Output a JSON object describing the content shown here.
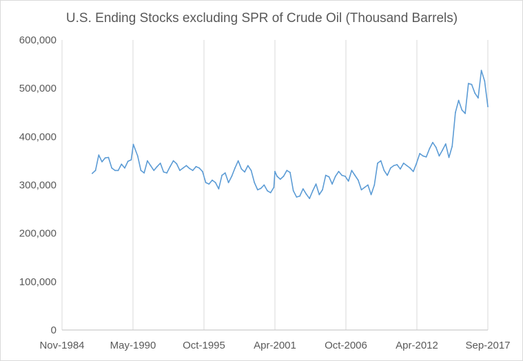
{
  "chart_data": {
    "type": "line",
    "title": "U.S. Ending Stocks excluding SPR of Crude Oil (Thousand Barrels)",
    "xlabel": "",
    "ylabel": "",
    "x_axis": {
      "type": "date",
      "range": [
        "1984-11",
        "2017-09"
      ],
      "tick_labels": [
        "Nov-1984",
        "May-1990",
        "Oct-1995",
        "Apr-2001",
        "Oct-2006",
        "Apr-2012",
        "Sep-2017"
      ]
    },
    "y_axis": {
      "range": [
        0,
        600000
      ],
      "tick_labels": [
        "0",
        "100,000",
        "200,000",
        "300,000",
        "400,000",
        "500,000",
        "600,000"
      ]
    },
    "grid": {
      "vertical": true,
      "horizontal": false
    },
    "legend": "none",
    "series": [
      {
        "color": "#5b9bd5",
        "points": [
          [
            "1987-03",
            324000
          ],
          [
            "1987-06",
            330000
          ],
          [
            "1987-09",
            362000
          ],
          [
            "1987-12",
            348000
          ],
          [
            "1988-03",
            356000
          ],
          [
            "1988-06",
            357000
          ],
          [
            "1988-09",
            335000
          ],
          [
            "1988-12",
            330000
          ],
          [
            "1989-03",
            330000
          ],
          [
            "1989-06",
            343000
          ],
          [
            "1989-09",
            335000
          ],
          [
            "1989-12",
            349000
          ],
          [
            "1990-03",
            352000
          ],
          [
            "1990-05",
            384000
          ],
          [
            "1990-09",
            360000
          ],
          [
            "1990-12",
            330000
          ],
          [
            "1991-03",
            325000
          ],
          [
            "1991-06",
            350000
          ],
          [
            "1991-09",
            340000
          ],
          [
            "1991-12",
            330000
          ],
          [
            "1992-03",
            338000
          ],
          [
            "1992-06",
            345000
          ],
          [
            "1992-09",
            327000
          ],
          [
            "1992-12",
            325000
          ],
          [
            "1993-03",
            338000
          ],
          [
            "1993-06",
            350000
          ],
          [
            "1993-09",
            344000
          ],
          [
            "1993-12",
            330000
          ],
          [
            "1994-03",
            335000
          ],
          [
            "1994-06",
            340000
          ],
          [
            "1994-09",
            334000
          ],
          [
            "1994-12",
            330000
          ],
          [
            "1995-03",
            338000
          ],
          [
            "1995-06",
            335000
          ],
          [
            "1995-09",
            328000
          ],
          [
            "1995-12",
            305000
          ],
          [
            "1996-03",
            302000
          ],
          [
            "1996-06",
            310000
          ],
          [
            "1996-09",
            305000
          ],
          [
            "1996-12",
            292000
          ],
          [
            "1997-03",
            320000
          ],
          [
            "1997-06",
            325000
          ],
          [
            "1997-09",
            305000
          ],
          [
            "1997-12",
            318000
          ],
          [
            "1998-03",
            335000
          ],
          [
            "1998-06",
            350000
          ],
          [
            "1998-09",
            333000
          ],
          [
            "1998-12",
            327000
          ],
          [
            "1999-03",
            340000
          ],
          [
            "1999-06",
            330000
          ],
          [
            "1999-09",
            305000
          ],
          [
            "1999-12",
            290000
          ],
          [
            "2000-03",
            293000
          ],
          [
            "2000-06",
            300000
          ],
          [
            "2000-09",
            288000
          ],
          [
            "2000-12",
            284000
          ],
          [
            "2001-03",
            295000
          ],
          [
            "2001-04",
            328000
          ],
          [
            "2001-06",
            318000
          ],
          [
            "2001-09",
            312000
          ],
          [
            "2001-12",
            318000
          ],
          [
            "2002-03",
            330000
          ],
          [
            "2002-06",
            326000
          ],
          [
            "2002-09",
            288000
          ],
          [
            "2002-12",
            275000
          ],
          [
            "2003-03",
            277000
          ],
          [
            "2003-06",
            292000
          ],
          [
            "2003-09",
            281000
          ],
          [
            "2003-12",
            272000
          ],
          [
            "2004-03",
            288000
          ],
          [
            "2004-06",
            302000
          ],
          [
            "2004-09",
            280000
          ],
          [
            "2004-12",
            290000
          ],
          [
            "2005-03",
            320000
          ],
          [
            "2005-06",
            317000
          ],
          [
            "2005-09",
            302000
          ],
          [
            "2005-12",
            318000
          ],
          [
            "2006-03",
            328000
          ],
          [
            "2006-06",
            320000
          ],
          [
            "2006-09",
            318000
          ],
          [
            "2006-12",
            308000
          ],
          [
            "2007-03",
            330000
          ],
          [
            "2007-06",
            320000
          ],
          [
            "2007-09",
            310000
          ],
          [
            "2007-12",
            290000
          ],
          [
            "2008-03",
            295000
          ],
          [
            "2008-06",
            300000
          ],
          [
            "2008-09",
            280000
          ],
          [
            "2008-12",
            300000
          ],
          [
            "2009-03",
            345000
          ],
          [
            "2009-06",
            350000
          ],
          [
            "2009-09",
            330000
          ],
          [
            "2009-12",
            320000
          ],
          [
            "2010-03",
            335000
          ],
          [
            "2010-06",
            340000
          ],
          [
            "2010-09",
            342000
          ],
          [
            "2010-12",
            333000
          ],
          [
            "2011-03",
            345000
          ],
          [
            "2011-06",
            340000
          ],
          [
            "2011-09",
            335000
          ],
          [
            "2011-12",
            328000
          ],
          [
            "2012-03",
            345000
          ],
          [
            "2012-06",
            365000
          ],
          [
            "2012-09",
            360000
          ],
          [
            "2012-12",
            358000
          ],
          [
            "2013-03",
            375000
          ],
          [
            "2013-06",
            388000
          ],
          [
            "2013-09",
            378000
          ],
          [
            "2013-12",
            360000
          ],
          [
            "2014-03",
            372000
          ],
          [
            "2014-06",
            385000
          ],
          [
            "2014-09",
            357000
          ],
          [
            "2014-12",
            380000
          ],
          [
            "2015-03",
            450000
          ],
          [
            "2015-06",
            475000
          ],
          [
            "2015-09",
            455000
          ],
          [
            "2015-12",
            448000
          ],
          [
            "2016-03",
            510000
          ],
          [
            "2016-06",
            508000
          ],
          [
            "2016-09",
            490000
          ],
          [
            "2016-12",
            480000
          ],
          [
            "2017-03",
            537000
          ],
          [
            "2017-06",
            515000
          ],
          [
            "2017-09",
            462000
          ]
        ]
      }
    ]
  }
}
